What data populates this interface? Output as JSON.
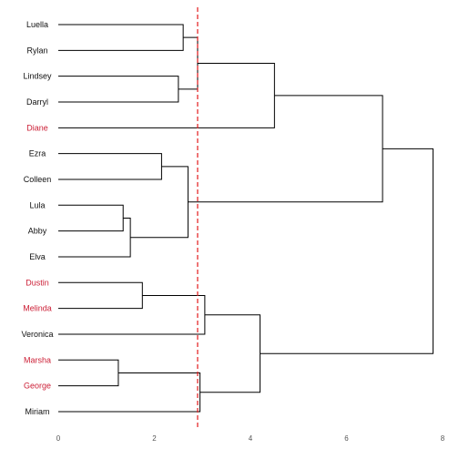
{
  "chart_data": {
    "type": "dendrogram",
    "orientation": "horizontal",
    "x_ticks": [
      0,
      2,
      4,
      6,
      8
    ],
    "xlim": [
      0,
      8
    ],
    "leaves": [
      {
        "name": "Luella",
        "highlight": false
      },
      {
        "name": "Rylan",
        "highlight": false
      },
      {
        "name": "Lindsey",
        "highlight": false
      },
      {
        "name": "Darryl",
        "highlight": false
      },
      {
        "name": "Diane",
        "highlight": true
      },
      {
        "name": "Ezra",
        "highlight": false
      },
      {
        "name": "Colleen",
        "highlight": false
      },
      {
        "name": "Lula",
        "highlight": false
      },
      {
        "name": "Abby",
        "highlight": false
      },
      {
        "name": "Elva",
        "highlight": false
      },
      {
        "name": "Dustin",
        "highlight": true
      },
      {
        "name": "Melinda",
        "highlight": true
      },
      {
        "name": "Veronica",
        "highlight": false
      },
      {
        "name": "Marsha",
        "highlight": true
      },
      {
        "name": "George",
        "highlight": true
      },
      {
        "name": "Miriam",
        "highlight": false
      }
    ],
    "merges": [
      {
        "a": "L0",
        "b": "L1",
        "height": 2.6
      },
      {
        "a": "L2",
        "b": "L3",
        "height": 2.5
      },
      {
        "a": "M0",
        "b": "M1",
        "height": 2.9
      },
      {
        "a": "M2",
        "b": "L4",
        "height": 4.5
      },
      {
        "a": "L5",
        "b": "L6",
        "height": 2.15
      },
      {
        "a": "L7",
        "b": "L8",
        "height": 1.35
      },
      {
        "a": "M5",
        "b": "L9",
        "height": 1.5
      },
      {
        "a": "M4",
        "b": "M6",
        "height": 2.7
      },
      {
        "a": "M3",
        "b": "M7",
        "height": 6.75
      },
      {
        "a": "L10",
        "b": "L11",
        "height": 1.75
      },
      {
        "a": "M9",
        "b": "L12",
        "height": 3.05
      },
      {
        "a": "L13",
        "b": "L14",
        "height": 1.25
      },
      {
        "a": "M11",
        "b": "L15",
        "height": 2.95
      },
      {
        "a": "M10",
        "b": "M12",
        "height": 4.2
      },
      {
        "a": "M8",
        "b": "M13",
        "height": 7.8
      }
    ],
    "cut_height": 2.9,
    "colors": {
      "branch": "#000000",
      "label": "#111111",
      "highlight": "#cc1f36",
      "cutline": "#e31a1c",
      "tick": "#555555"
    }
  }
}
